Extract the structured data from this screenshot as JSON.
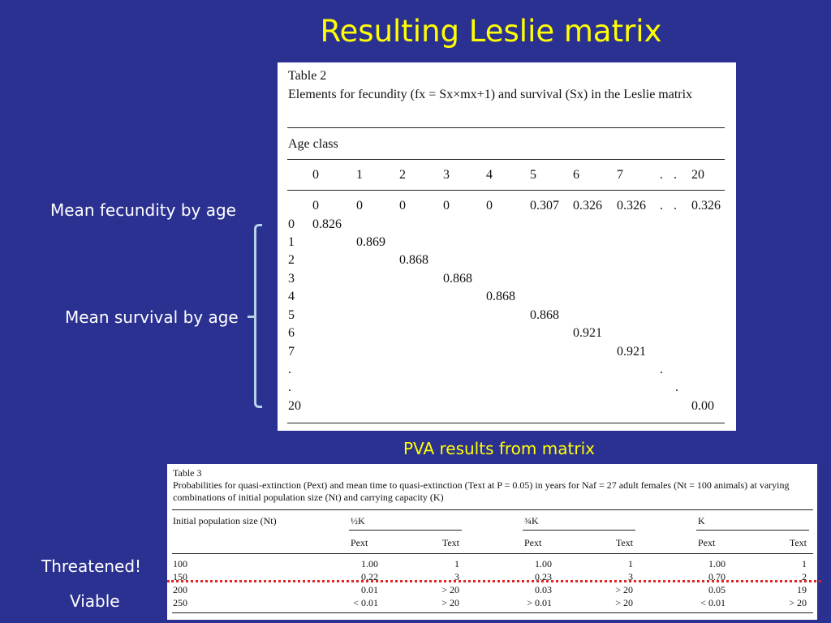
{
  "slide": {
    "title": "Resulting Leslie matrix",
    "fecundity_label": "Mean fecundity by age",
    "survival_label": "Mean survival by age",
    "pva_caption": "PVA results from matrix",
    "threatened_label": "Threatened!",
    "viable_label": "Viable"
  },
  "table2": {
    "heading": "Table 2",
    "description": "Elements for fecundity (fx = Sx×mx+1) and survival (Sx) in the Leslie matrix",
    "age_class_label": "Age class",
    "columns": [
      "0",
      "1",
      "2",
      "3",
      "4",
      "5",
      "6",
      "7",
      ".",
      ".",
      "20"
    ],
    "fecundity_row": [
      "0",
      "0",
      "0",
      "0",
      "0",
      "0.307",
      "0.326",
      "0.326",
      ".",
      ".",
      "0.326"
    ],
    "row_labels": [
      "0",
      "1",
      "2",
      "3",
      "4",
      "5",
      "6",
      "7",
      ".",
      ".",
      "20"
    ],
    "survival_values": [
      "0.826",
      "0.869",
      "0.868",
      "0.868",
      "0.868",
      "0.868",
      "0.921",
      "0.921",
      ".",
      ".",
      "0.00"
    ]
  },
  "table3": {
    "heading": "Table 3",
    "description": "Probabilities for quasi-extinction (Pext) and mean time to quasi-extinction (Text at P = 0.05) in years for Naf = 27 adult females (Nt = 100 animals) at varying combinations of initial population size (Nt) and carrying capacity (K)",
    "row_header": "Initial population size (Nt)",
    "groups": [
      "½K",
      "¾K",
      "K"
    ],
    "sub_p": "Pext",
    "sub_t": "Text",
    "rows": [
      {
        "n": "100",
        "cells": [
          "1.00",
          "1",
          "1.00",
          "1",
          "1.00",
          "1"
        ]
      },
      {
        "n": "150",
        "cells": [
          "0.22",
          "3",
          "0.23",
          "3",
          "0.70",
          "2"
        ]
      },
      {
        "n": "200",
        "cells": [
          "0.01",
          "> 20",
          "0.03",
          "> 20",
          "0.05",
          "19"
        ]
      },
      {
        "n": "250",
        "cells": [
          "< 0.01",
          "> 20",
          "> 0.01",
          "> 20",
          "< 0.01",
          "> 20"
        ]
      }
    ]
  }
}
